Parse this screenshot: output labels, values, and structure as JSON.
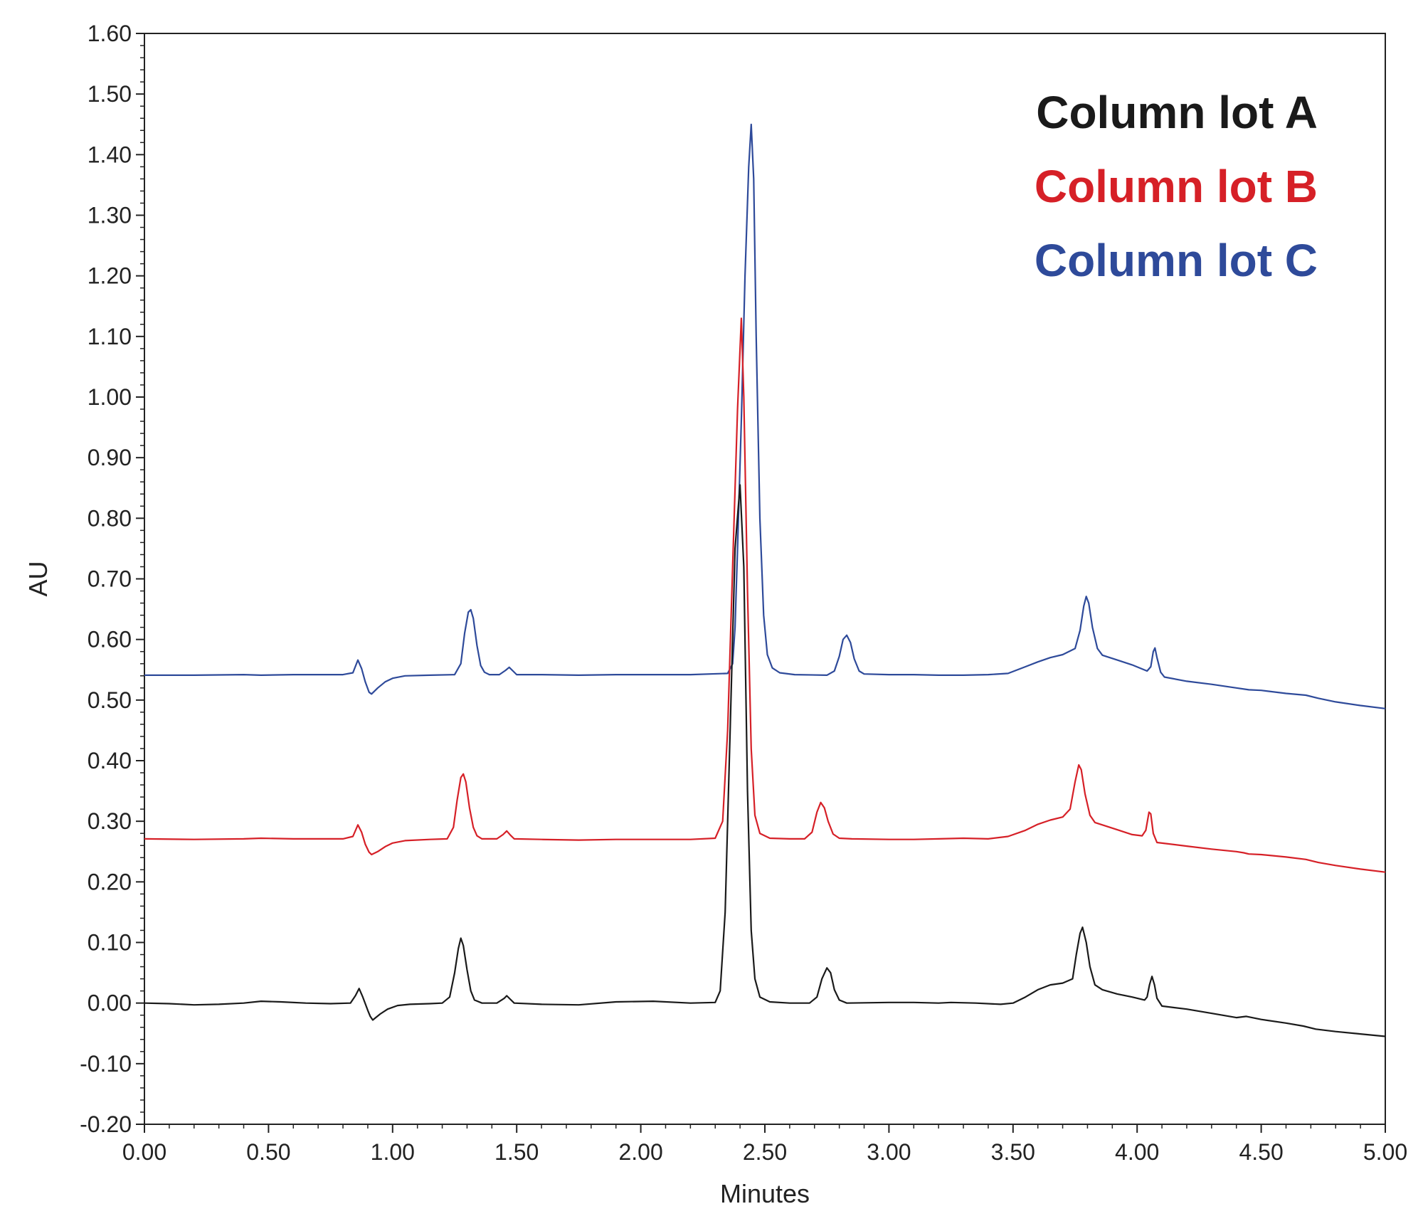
{
  "chart_data": {
    "type": "line",
    "title": "",
    "xlabel": "Minutes",
    "ylabel": "AU",
    "xlim": [
      0,
      5
    ],
    "ylim": [
      -0.2,
      1.6
    ],
    "xticks": [
      0,
      0.5,
      1,
      1.5,
      2,
      2.5,
      3,
      3.5,
      4,
      4.5,
      5
    ],
    "xtick_labels": [
      "0.00",
      "0.50",
      "1.00",
      "1.50",
      "2.00",
      "2.50",
      "3.00",
      "3.50",
      "4.00",
      "4.50",
      "5.00"
    ],
    "yticks": [
      -0.2,
      -0.1,
      0,
      0.1,
      0.2,
      0.3,
      0.4,
      0.5,
      0.6,
      0.7,
      0.8,
      0.9,
      1.0,
      1.1,
      1.2,
      1.3,
      1.4,
      1.5,
      1.6
    ],
    "ytick_labels": [
      "-0.20",
      "-0.10",
      "0.00",
      "0.10",
      "0.20",
      "0.30",
      "0.40",
      "0.50",
      "0.60",
      "0.70",
      "0.80",
      "0.90",
      "1.00",
      "1.10",
      "1.20",
      "1.30",
      "1.40",
      "1.50",
      "1.60"
    ],
    "grid": false,
    "legend_position": "top-right",
    "series": [
      {
        "name": "Column lot A",
        "color": "#1a1a1a",
        "points": [
          [
            0,
            0.0
          ],
          [
            0.1,
            -0.001
          ],
          [
            0.2,
            -0.003
          ],
          [
            0.3,
            -0.002
          ],
          [
            0.4,
            0.0
          ],
          [
            0.47,
            0.003
          ],
          [
            0.55,
            0.002
          ],
          [
            0.65,
            0.0
          ],
          [
            0.75,
            -0.001
          ],
          [
            0.83,
            0.0
          ],
          [
            0.85,
            0.012
          ],
          [
            0.865,
            0.024
          ],
          [
            0.88,
            0.01
          ],
          [
            0.9,
            -0.012
          ],
          [
            0.91,
            -0.022
          ],
          [
            0.92,
            -0.028
          ],
          [
            0.95,
            -0.018
          ],
          [
            0.98,
            -0.01
          ],
          [
            1.02,
            -0.004
          ],
          [
            1.07,
            -0.002
          ],
          [
            1.15,
            -0.001
          ],
          [
            1.2,
            0.0
          ],
          [
            1.23,
            0.01
          ],
          [
            1.25,
            0.05
          ],
          [
            1.265,
            0.09
          ],
          [
            1.275,
            0.107
          ],
          [
            1.285,
            0.095
          ],
          [
            1.3,
            0.055
          ],
          [
            1.315,
            0.02
          ],
          [
            1.33,
            0.005
          ],
          [
            1.36,
            0.0
          ],
          [
            1.42,
            0.0
          ],
          [
            1.45,
            0.008
          ],
          [
            1.46,
            0.012
          ],
          [
            1.475,
            0.006
          ],
          [
            1.49,
            0.0
          ],
          [
            1.6,
            -0.002
          ],
          [
            1.75,
            -0.003
          ],
          [
            1.9,
            0.002
          ],
          [
            2.05,
            0.003
          ],
          [
            2.2,
            0.0
          ],
          [
            2.3,
            0.001
          ],
          [
            2.32,
            0.02
          ],
          [
            2.34,
            0.15
          ],
          [
            2.36,
            0.45
          ],
          [
            2.38,
            0.75
          ],
          [
            2.4,
            0.855
          ],
          [
            2.415,
            0.72
          ],
          [
            2.43,
            0.35
          ],
          [
            2.445,
            0.12
          ],
          [
            2.46,
            0.04
          ],
          [
            2.48,
            0.01
          ],
          [
            2.52,
            0.002
          ],
          [
            2.6,
            0.0
          ],
          [
            2.68,
            0.0
          ],
          [
            2.71,
            0.01
          ],
          [
            2.73,
            0.04
          ],
          [
            2.75,
            0.058
          ],
          [
            2.765,
            0.05
          ],
          [
            2.78,
            0.022
          ],
          [
            2.8,
            0.005
          ],
          [
            2.83,
            0.0
          ],
          [
            3.0,
            0.001
          ],
          [
            3.1,
            0.001
          ],
          [
            3.2,
            0.0
          ],
          [
            3.25,
            0.001
          ],
          [
            3.35,
            0.0
          ],
          [
            3.45,
            -0.002
          ],
          [
            3.5,
            0.0
          ],
          [
            3.55,
            0.01
          ],
          [
            3.6,
            0.022
          ],
          [
            3.65,
            0.03
          ],
          [
            3.7,
            0.033
          ],
          [
            3.74,
            0.04
          ],
          [
            3.755,
            0.08
          ],
          [
            3.77,
            0.115
          ],
          [
            3.78,
            0.125
          ],
          [
            3.795,
            0.1
          ],
          [
            3.81,
            0.06
          ],
          [
            3.83,
            0.03
          ],
          [
            3.86,
            0.022
          ],
          [
            3.92,
            0.015
          ],
          [
            3.98,
            0.01
          ],
          [
            4.03,
            0.005
          ],
          [
            4.04,
            0.01
          ],
          [
            4.05,
            0.03
          ],
          [
            4.06,
            0.044
          ],
          [
            4.07,
            0.03
          ],
          [
            4.08,
            0.008
          ],
          [
            4.1,
            -0.005
          ],
          [
            4.2,
            -0.01
          ],
          [
            4.3,
            -0.017
          ],
          [
            4.4,
            -0.024
          ],
          [
            4.44,
            -0.022
          ],
          [
            4.5,
            -0.027
          ],
          [
            4.6,
            -0.033
          ],
          [
            4.67,
            -0.038
          ],
          [
            4.72,
            -0.043
          ],
          [
            4.8,
            -0.047
          ],
          [
            4.9,
            -0.051
          ],
          [
            5.0,
            -0.055
          ]
        ]
      },
      {
        "name": "Column lot B",
        "color": "#d62027",
        "points": [
          [
            0,
            0.271
          ],
          [
            0.2,
            0.27
          ],
          [
            0.4,
            0.271
          ],
          [
            0.47,
            0.272
          ],
          [
            0.6,
            0.271
          ],
          [
            0.8,
            0.271
          ],
          [
            0.84,
            0.275
          ],
          [
            0.86,
            0.294
          ],
          [
            0.875,
            0.282
          ],
          [
            0.89,
            0.262
          ],
          [
            0.905,
            0.249
          ],
          [
            0.915,
            0.245
          ],
          [
            0.94,
            0.25
          ],
          [
            0.97,
            0.258
          ],
          [
            1.0,
            0.264
          ],
          [
            1.05,
            0.268
          ],
          [
            1.15,
            0.27
          ],
          [
            1.22,
            0.271
          ],
          [
            1.245,
            0.29
          ],
          [
            1.26,
            0.335
          ],
          [
            1.275,
            0.372
          ],
          [
            1.285,
            0.378
          ],
          [
            1.295,
            0.365
          ],
          [
            1.31,
            0.322
          ],
          [
            1.325,
            0.29
          ],
          [
            1.34,
            0.276
          ],
          [
            1.36,
            0.271
          ],
          [
            1.42,
            0.271
          ],
          [
            1.445,
            0.278
          ],
          [
            1.46,
            0.284
          ],
          [
            1.475,
            0.277
          ],
          [
            1.49,
            0.271
          ],
          [
            1.6,
            0.27
          ],
          [
            1.75,
            0.269
          ],
          [
            1.9,
            0.27
          ],
          [
            2.05,
            0.27
          ],
          [
            2.2,
            0.27
          ],
          [
            2.3,
            0.272
          ],
          [
            2.33,
            0.3
          ],
          [
            2.35,
            0.45
          ],
          [
            2.37,
            0.72
          ],
          [
            2.39,
            0.98
          ],
          [
            2.405,
            1.13
          ],
          [
            2.415,
            1.0
          ],
          [
            2.43,
            0.68
          ],
          [
            2.445,
            0.42
          ],
          [
            2.46,
            0.31
          ],
          [
            2.48,
            0.28
          ],
          [
            2.52,
            0.272
          ],
          [
            2.6,
            0.271
          ],
          [
            2.66,
            0.271
          ],
          [
            2.69,
            0.282
          ],
          [
            2.71,
            0.315
          ],
          [
            2.725,
            0.331
          ],
          [
            2.74,
            0.322
          ],
          [
            2.755,
            0.3
          ],
          [
            2.775,
            0.279
          ],
          [
            2.8,
            0.272
          ],
          [
            2.85,
            0.271
          ],
          [
            3.0,
            0.27
          ],
          [
            3.1,
            0.27
          ],
          [
            3.2,
            0.271
          ],
          [
            3.3,
            0.272
          ],
          [
            3.4,
            0.271
          ],
          [
            3.48,
            0.275
          ],
          [
            3.55,
            0.285
          ],
          [
            3.6,
            0.295
          ],
          [
            3.65,
            0.302
          ],
          [
            3.7,
            0.307
          ],
          [
            3.73,
            0.32
          ],
          [
            3.75,
            0.365
          ],
          [
            3.765,
            0.393
          ],
          [
            3.775,
            0.385
          ],
          [
            3.79,
            0.345
          ],
          [
            3.81,
            0.31
          ],
          [
            3.83,
            0.298
          ],
          [
            3.86,
            0.294
          ],
          [
            3.92,
            0.286
          ],
          [
            3.98,
            0.278
          ],
          [
            4.02,
            0.276
          ],
          [
            4.035,
            0.285
          ],
          [
            4.048,
            0.315
          ],
          [
            4.055,
            0.312
          ],
          [
            4.065,
            0.28
          ],
          [
            4.08,
            0.265
          ],
          [
            4.2,
            0.259
          ],
          [
            4.3,
            0.254
          ],
          [
            4.4,
            0.25
          ],
          [
            4.43,
            0.248
          ],
          [
            4.45,
            0.246
          ],
          [
            4.5,
            0.245
          ],
          [
            4.6,
            0.241
          ],
          [
            4.68,
            0.237
          ],
          [
            4.73,
            0.232
          ],
          [
            4.8,
            0.227
          ],
          [
            4.9,
            0.221
          ],
          [
            5.0,
            0.216
          ]
        ]
      },
      {
        "name": "Column lot C",
        "color": "#2e4a9a",
        "points": [
          [
            0,
            0.541
          ],
          [
            0.2,
            0.541
          ],
          [
            0.4,
            0.542
          ],
          [
            0.47,
            0.541
          ],
          [
            0.6,
            0.542
          ],
          [
            0.8,
            0.542
          ],
          [
            0.84,
            0.545
          ],
          [
            0.86,
            0.566
          ],
          [
            0.875,
            0.552
          ],
          [
            0.89,
            0.53
          ],
          [
            0.905,
            0.513
          ],
          [
            0.915,
            0.51
          ],
          [
            0.94,
            0.52
          ],
          [
            0.97,
            0.53
          ],
          [
            1.0,
            0.536
          ],
          [
            1.05,
            0.54
          ],
          [
            1.15,
            0.541
          ],
          [
            1.25,
            0.542
          ],
          [
            1.275,
            0.56
          ],
          [
            1.29,
            0.61
          ],
          [
            1.305,
            0.645
          ],
          [
            1.315,
            0.649
          ],
          [
            1.325,
            0.635
          ],
          [
            1.34,
            0.59
          ],
          [
            1.355,
            0.557
          ],
          [
            1.37,
            0.546
          ],
          [
            1.39,
            0.542
          ],
          [
            1.43,
            0.542
          ],
          [
            1.455,
            0.549
          ],
          [
            1.47,
            0.554
          ],
          [
            1.485,
            0.548
          ],
          [
            1.5,
            0.542
          ],
          [
            1.6,
            0.542
          ],
          [
            1.75,
            0.541
          ],
          [
            1.9,
            0.542
          ],
          [
            2.05,
            0.542
          ],
          [
            2.2,
            0.542
          ],
          [
            2.35,
            0.544
          ],
          [
            2.37,
            0.56
          ],
          [
            2.38,
            0.62
          ],
          [
            2.39,
            0.75
          ],
          [
            2.405,
            0.96
          ],
          [
            2.42,
            1.2
          ],
          [
            2.435,
            1.38
          ],
          [
            2.445,
            1.45
          ],
          [
            2.455,
            1.36
          ],
          [
            2.465,
            1.1
          ],
          [
            2.48,
            0.8
          ],
          [
            2.495,
            0.64
          ],
          [
            2.51,
            0.575
          ],
          [
            2.53,
            0.553
          ],
          [
            2.56,
            0.545
          ],
          [
            2.62,
            0.542
          ],
          [
            2.75,
            0.541
          ],
          [
            2.78,
            0.548
          ],
          [
            2.8,
            0.572
          ],
          [
            2.815,
            0.6
          ],
          [
            2.83,
            0.607
          ],
          [
            2.845,
            0.595
          ],
          [
            2.86,
            0.568
          ],
          [
            2.88,
            0.548
          ],
          [
            2.9,
            0.543
          ],
          [
            3.0,
            0.542
          ],
          [
            3.1,
            0.542
          ],
          [
            3.2,
            0.541
          ],
          [
            3.3,
            0.541
          ],
          [
            3.4,
            0.542
          ],
          [
            3.48,
            0.544
          ],
          [
            3.55,
            0.555
          ],
          [
            3.6,
            0.563
          ],
          [
            3.65,
            0.57
          ],
          [
            3.7,
            0.575
          ],
          [
            3.75,
            0.585
          ],
          [
            3.77,
            0.615
          ],
          [
            3.785,
            0.655
          ],
          [
            3.795,
            0.671
          ],
          [
            3.805,
            0.66
          ],
          [
            3.82,
            0.62
          ],
          [
            3.84,
            0.585
          ],
          [
            3.86,
            0.574
          ],
          [
            3.92,
            0.566
          ],
          [
            3.98,
            0.558
          ],
          [
            4.04,
            0.548
          ],
          [
            4.055,
            0.555
          ],
          [
            4.065,
            0.58
          ],
          [
            4.072,
            0.586
          ],
          [
            4.08,
            0.57
          ],
          [
            4.095,
            0.546
          ],
          [
            4.11,
            0.538
          ],
          [
            4.2,
            0.531
          ],
          [
            4.3,
            0.526
          ],
          [
            4.4,
            0.52
          ],
          [
            4.45,
            0.517
          ],
          [
            4.5,
            0.516
          ],
          [
            4.6,
            0.511
          ],
          [
            4.68,
            0.508
          ],
          [
            4.73,
            0.503
          ],
          [
            4.8,
            0.497
          ],
          [
            4.9,
            0.491
          ],
          [
            5.0,
            0.486
          ]
        ]
      }
    ]
  }
}
